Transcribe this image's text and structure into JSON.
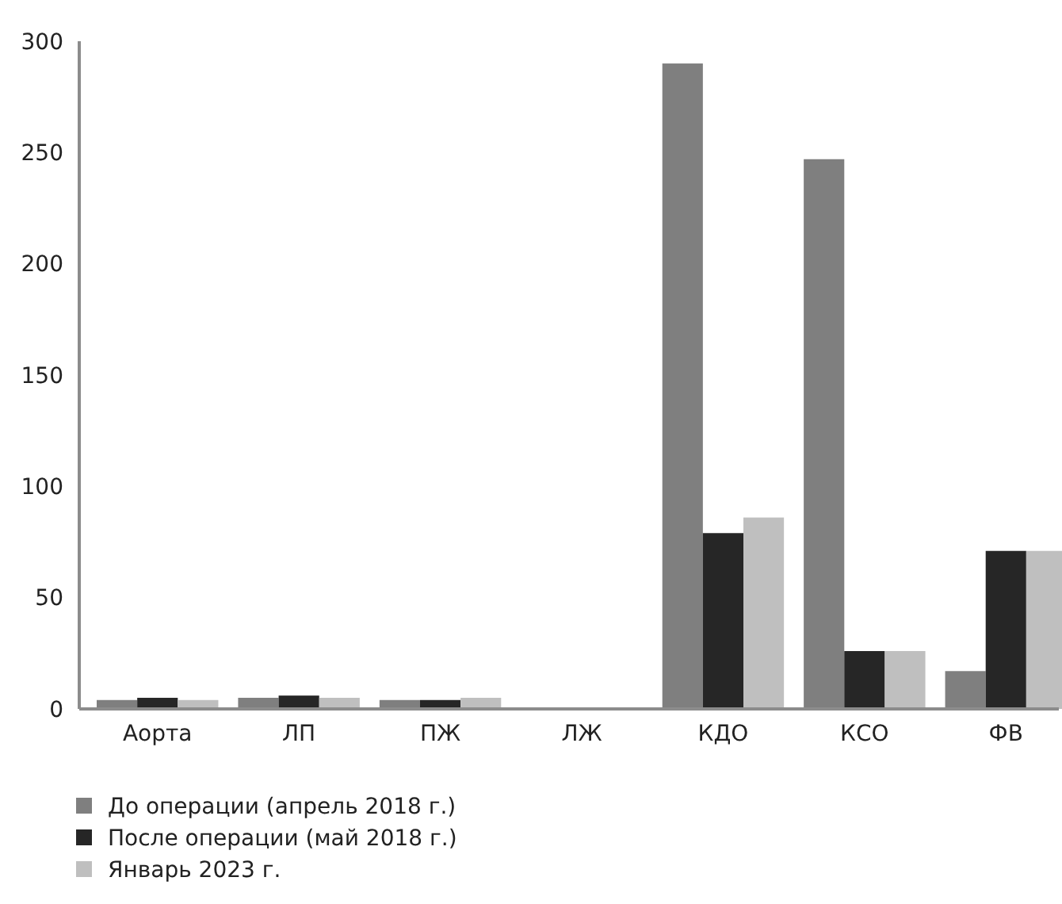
{
  "chart_data": {
    "type": "bar",
    "categories": [
      "Аорта",
      "ЛП",
      "ПЖ",
      "ЛЖ",
      "КДО",
      "КСО",
      "ФВ"
    ],
    "series": [
      {
        "name": "До операции (апрель 2018 г.)",
        "color": "#7f7f7f",
        "values": [
          4,
          5,
          4,
          null,
          290,
          247,
          17
        ]
      },
      {
        "name": "После операции (май 2018 г.)",
        "color": "#262626",
        "values": [
          5,
          6,
          4,
          null,
          79,
          26,
          71
        ]
      },
      {
        "name": "Январь 2023 г.",
        "color": "#bfbfbf",
        "values": [
          4,
          5,
          5,
          null,
          86,
          26,
          71
        ]
      }
    ],
    "ylim": [
      0,
      300
    ],
    "yticks": [
      0,
      50,
      100,
      150,
      200,
      250,
      300
    ],
    "grid": false,
    "legend": "bottom left"
  }
}
